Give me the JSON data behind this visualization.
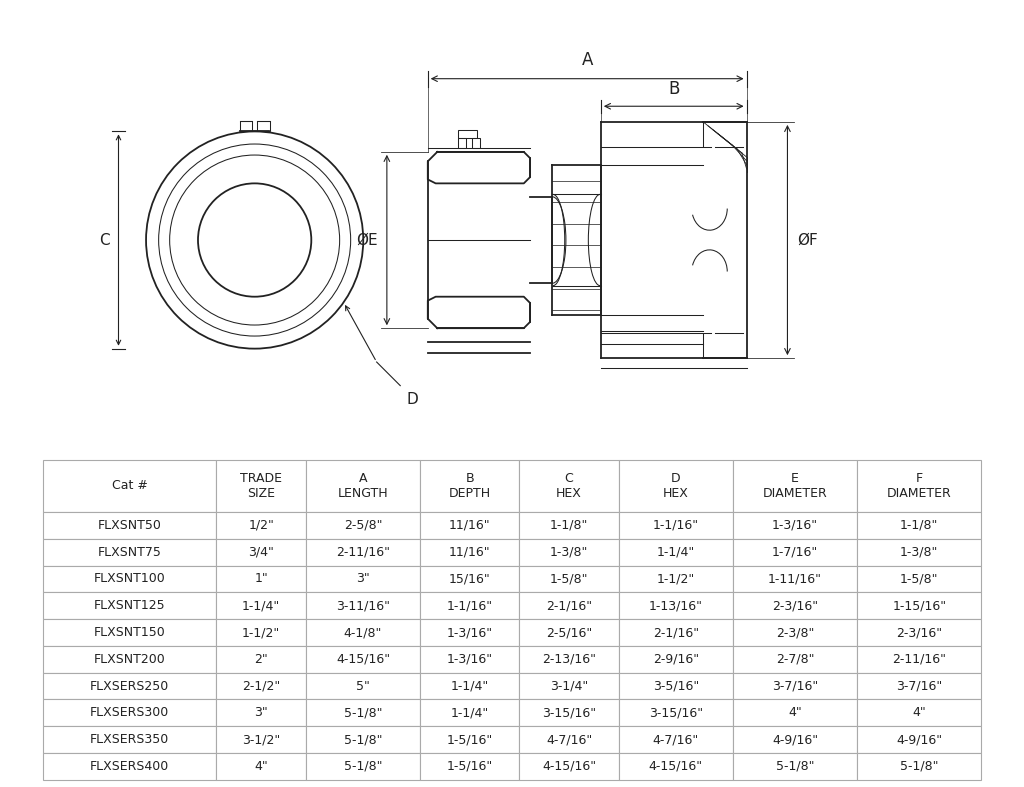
{
  "bg_color": "#ffffff",
  "table_header": [
    "Cat #",
    "TRADE\nSIZE",
    "A\nLENGTH",
    "B\nDEPTH",
    "C\nHEX",
    "D\nHEX",
    "E\nDIAMETER",
    "F\nDIAMETER"
  ],
  "table_data": [
    [
      "FLXSNT50",
      "1/2\"",
      "2-5/8\"",
      "11/16\"",
      "1-1/8\"",
      "1-1/16\"",
      "1-3/16\"",
      "1-1/8\""
    ],
    [
      "FLXSNT75",
      "3/4\"",
      "2-11/16\"",
      "11/16\"",
      "1-3/8\"",
      "1-1/4\"",
      "1-7/16\"",
      "1-3/8\""
    ],
    [
      "FLXSNT100",
      "1\"",
      "3\"",
      "15/16\"",
      "1-5/8\"",
      "1-1/2\"",
      "1-11/16\"",
      "1-5/8\""
    ],
    [
      "FLXSNT125",
      "1-1/4\"",
      "3-11/16\"",
      "1-1/16\"",
      "2-1/16\"",
      "1-13/16\"",
      "2-3/16\"",
      "1-15/16\""
    ],
    [
      "FLXSNT150",
      "1-1/2\"",
      "4-1/8\"",
      "1-3/16\"",
      "2-5/16\"",
      "2-1/16\"",
      "2-3/8\"",
      "2-3/16\""
    ],
    [
      "FLXSNT200",
      "2\"",
      "4-15/16\"",
      "1-3/16\"",
      "2-13/16\"",
      "2-9/16\"",
      "2-7/8\"",
      "2-11/16\""
    ],
    [
      "FLXSERS250",
      "2-1/2\"",
      "5\"",
      "1-1/4\"",
      "3-1/4\"",
      "3-5/16\"",
      "3-7/16\"",
      "3-7/16\""
    ],
    [
      "FLXSERS300",
      "3\"",
      "5-1/8\"",
      "1-1/4\"",
      "3-15/16\"",
      "3-15/16\"",
      "4\"",
      "4\""
    ],
    [
      "FLXSERS350",
      "3-1/2\"",
      "5-1/8\"",
      "1-5/16\"",
      "4-7/16\"",
      "4-7/16\"",
      "4-9/16\"",
      "4-9/16\""
    ],
    [
      "FLXSERS400",
      "4\"",
      "5-1/8\"",
      "1-5/16\"",
      "4-15/16\"",
      "4-15/16\"",
      "5-1/8\"",
      "5-1/8\""
    ]
  ],
  "line_color": "#222222",
  "table_line_color": "#aaaaaa"
}
